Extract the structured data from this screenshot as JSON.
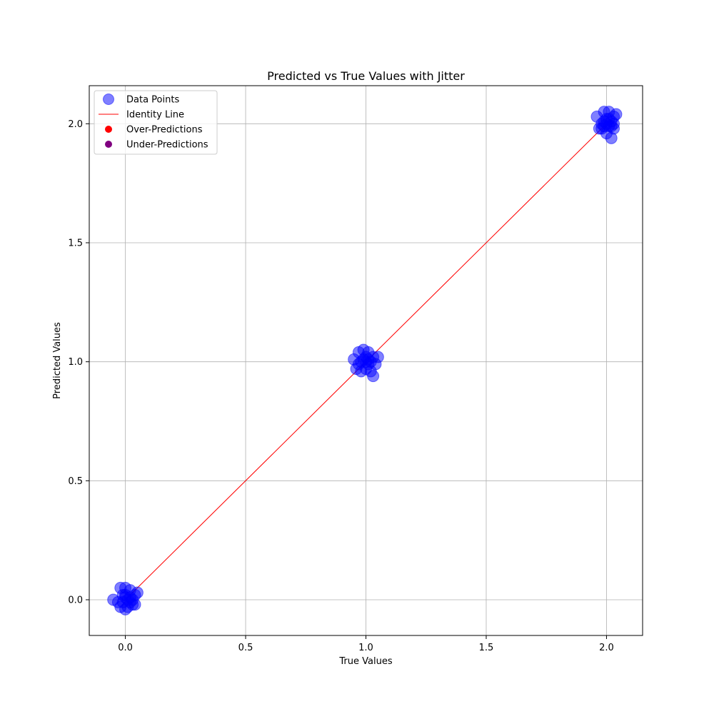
{
  "chart_data": {
    "type": "scatter",
    "title": "Predicted vs True Values with Jitter",
    "xlabel": "True Values",
    "ylabel": "Predicted Values",
    "xlim": [
      -0.15,
      2.15
    ],
    "ylim": [
      -0.15,
      2.16
    ],
    "xticks": [
      0.0,
      0.5,
      1.0,
      1.5,
      2.0
    ],
    "yticks": [
      0.0,
      0.5,
      1.0,
      1.5,
      2.0
    ],
    "xtick_labels": [
      "0.0",
      "0.5",
      "1.0",
      "1.5",
      "2.0"
    ],
    "ytick_labels": [
      "0.0",
      "0.5",
      "1.0",
      "1.5",
      "2.0"
    ],
    "grid": true,
    "legend_position": "top-left",
    "legend": [
      {
        "label": "Data Points",
        "kind": "marker",
        "color": "#0000ff",
        "alpha": 0.5
      },
      {
        "label": "Identity Line",
        "kind": "line",
        "color": "#ff0000"
      },
      {
        "label": "Over-Predictions",
        "kind": "marker",
        "color": "#ff0000",
        "alpha": 1
      },
      {
        "label": "Under-Predictions",
        "kind": "marker",
        "color": "#800080",
        "alpha": 1
      }
    ],
    "identity_line": {
      "x": [
        0,
        2
      ],
      "y": [
        0,
        2
      ],
      "color": "#ff0000"
    },
    "series": [
      {
        "name": "Data Points",
        "color": "#0000ff",
        "alpha": 0.5,
        "points": [
          [
            -0.05,
            0.0
          ],
          [
            -0.02,
            0.05
          ],
          [
            0.0,
            0.05
          ],
          [
            0.02,
            0.04
          ],
          [
            0.04,
            0.02
          ],
          [
            0.05,
            0.03
          ],
          [
            -0.03,
            -0.01
          ],
          [
            0.01,
            -0.03
          ],
          [
            0.03,
            -0.02
          ],
          [
            0.04,
            -0.02
          ],
          [
            0.0,
            -0.04
          ],
          [
            -0.02,
            -0.03
          ],
          [
            0.02,
            0.01
          ],
          [
            -0.01,
            0.02
          ],
          [
            0.01,
            0.0
          ],
          [
            0.0,
            0.01
          ],
          [
            0.03,
            0.0
          ],
          [
            -0.01,
            -0.01
          ],
          [
            0.02,
            -0.01
          ],
          [
            0.0,
            0.02
          ],
          [
            0.95,
            1.01
          ],
          [
            0.97,
            1.04
          ],
          [
            0.99,
            1.05
          ],
          [
            1.01,
            1.04
          ],
          [
            1.03,
            1.02
          ],
          [
            1.05,
            1.02
          ],
          [
            0.96,
            0.97
          ],
          [
            0.98,
            0.96
          ],
          [
            1.0,
            0.97
          ],
          [
            1.02,
            0.96
          ],
          [
            1.03,
            0.94
          ],
          [
            1.04,
            0.99
          ],
          [
            0.98,
            1.0
          ],
          [
            1.0,
            1.02
          ],
          [
            1.01,
            0.99
          ],
          [
            0.99,
            1.01
          ],
          [
            1.02,
            1.0
          ],
          [
            0.97,
            0.99
          ],
          [
            1.01,
            1.01
          ],
          [
            1.0,
            1.0
          ],
          [
            1.96,
            2.03
          ],
          [
            1.99,
            2.05
          ],
          [
            2.01,
            2.05
          ],
          [
            2.03,
            2.03
          ],
          [
            2.04,
            2.04
          ],
          [
            2.03,
            2.0
          ],
          [
            1.97,
            1.98
          ],
          [
            2.0,
            1.96
          ],
          [
            2.02,
            1.94
          ],
          [
            2.03,
            1.98
          ],
          [
            1.98,
            2.0
          ],
          [
            2.0,
            2.02
          ],
          [
            2.01,
            1.99
          ],
          [
            1.99,
            2.01
          ],
          [
            2.02,
            2.01
          ],
          [
            1.98,
            1.98
          ],
          [
            2.0,
            2.0
          ],
          [
            2.01,
            2.02
          ],
          [
            1.99,
            1.99
          ],
          [
            2.02,
            1.99
          ]
        ]
      },
      {
        "name": "Over-Predictions",
        "color": "#ff0000",
        "alpha": 1,
        "points": []
      },
      {
        "name": "Under-Predictions",
        "color": "#800080",
        "alpha": 1,
        "points": []
      }
    ]
  }
}
